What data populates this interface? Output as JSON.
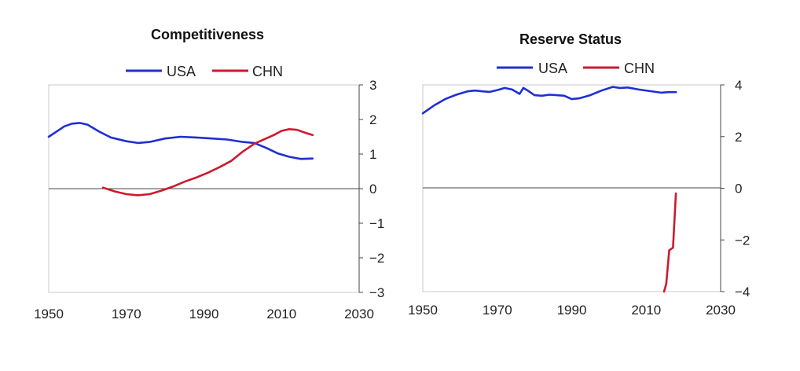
{
  "chart_data": [
    {
      "type": "line",
      "title": "Competitiveness",
      "xlim": [
        1950,
        2030
      ],
      "ylim": [
        -3,
        3
      ],
      "xticks": [
        1950,
        1970,
        1990,
        2010,
        2030
      ],
      "yticks": [
        3,
        2,
        1,
        0,
        -1,
        -2,
        -3
      ],
      "ytick_labels": [
        "3",
        "2",
        "1",
        "0",
        "−1",
        "−2",
        "−3"
      ],
      "legend_position": "top-center",
      "series": [
        {
          "name": "USA",
          "color": "#1f2fd4",
          "x": [
            1950,
            1952,
            1954,
            1956,
            1958,
            1960,
            1963,
            1966,
            1970,
            1973,
            1976,
            1980,
            1984,
            1988,
            1992,
            1996,
            2000,
            2003,
            2006,
            2009,
            2012,
            2015,
            2018
          ],
          "y": [
            1.5,
            1.65,
            1.8,
            1.88,
            1.9,
            1.85,
            1.65,
            1.48,
            1.37,
            1.32,
            1.35,
            1.45,
            1.5,
            1.48,
            1.45,
            1.42,
            1.35,
            1.32,
            1.18,
            1.02,
            0.92,
            0.86,
            0.87
          ]
        },
        {
          "name": "CHN",
          "color": "#cc1a2e",
          "x": [
            1964,
            1967,
            1970,
            1973,
            1976,
            1979,
            1982,
            1985,
            1988,
            1991,
            1994,
            1997,
            2000,
            2003,
            2006,
            2008,
            2010,
            2012,
            2014,
            2016,
            2018
          ],
          "y": [
            0.03,
            -0.08,
            -0.16,
            -0.19,
            -0.16,
            -0.06,
            0.06,
            0.2,
            0.32,
            0.46,
            0.62,
            0.8,
            1.07,
            1.3,
            1.45,
            1.55,
            1.67,
            1.72,
            1.7,
            1.62,
            1.55
          ]
        }
      ]
    },
    {
      "type": "line",
      "title": "Reserve Status",
      "xlim": [
        1950,
        2030
      ],
      "ylim": [
        -4,
        4
      ],
      "xticks": [
        1950,
        1970,
        1990,
        2010,
        2030
      ],
      "yticks": [
        4,
        2,
        0,
        -2,
        -4
      ],
      "ytick_labels": [
        "4",
        "2",
        "0",
        "−2",
        "−4"
      ],
      "legend_position": "top-center",
      "series": [
        {
          "name": "USA",
          "color": "#1f2fd4",
          "x": [
            1950,
            1953,
            1956,
            1959,
            1962,
            1964,
            1966,
            1968,
            1970,
            1972,
            1974,
            1976,
            1977,
            1978,
            1980,
            1982,
            1984,
            1986,
            1988,
            1990,
            1992,
            1995,
            1998,
            2001,
            2003,
            2005,
            2008,
            2011,
            2014,
            2016,
            2018
          ],
          "y": [
            2.9,
            3.2,
            3.45,
            3.62,
            3.75,
            3.78,
            3.75,
            3.73,
            3.8,
            3.88,
            3.82,
            3.65,
            3.88,
            3.8,
            3.6,
            3.58,
            3.62,
            3.6,
            3.58,
            3.45,
            3.48,
            3.6,
            3.78,
            3.92,
            3.88,
            3.9,
            3.82,
            3.76,
            3.7,
            3.72,
            3.72
          ]
        },
        {
          "name": "CHN",
          "color": "#cc1a2e",
          "x": [
            2014.8,
            2015.4,
            2016.2,
            2017.2,
            2018
          ],
          "y": [
            -4,
            -3.7,
            -2.4,
            -2.3,
            -0.2
          ]
        }
      ]
    }
  ]
}
